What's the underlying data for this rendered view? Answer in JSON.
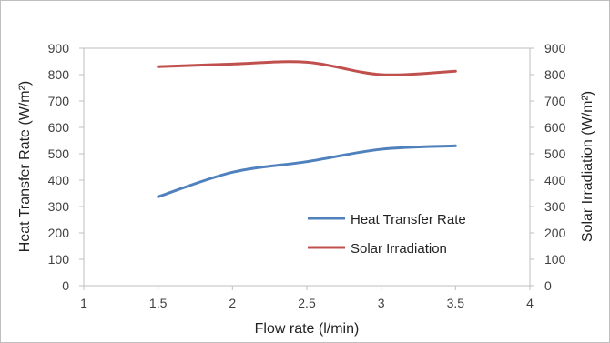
{
  "chart_data": {
    "type": "line",
    "xlabel": "Flow rate (l/min)",
    "ylabel_left": "Heat Transfer Rate (W/m²)",
    "ylabel_right": "Solar Irradiation (W/m²)",
    "xlim": [
      1,
      4
    ],
    "x_ticks": [
      1,
      1.5,
      2,
      2.5,
      3,
      3.5,
      4
    ],
    "x_tick_labels": [
      "1",
      "1.5",
      "2",
      "2.5",
      "3",
      "3.5",
      "4"
    ],
    "ylim_left": [
      0,
      900
    ],
    "ylim_right": [
      0,
      900
    ],
    "y_ticks": [
      0,
      100,
      200,
      300,
      400,
      500,
      600,
      700,
      800,
      900
    ],
    "y_tick_labels": [
      "0",
      "100",
      "200",
      "300",
      "400",
      "500",
      "600",
      "700",
      "800",
      "900"
    ],
    "grid": false,
    "legend_position": "lower-right",
    "series": [
      {
        "name": "Heat Transfer Rate",
        "axis": "left",
        "color": "#4f81bd",
        "x": [
          1.5,
          2,
          2.5,
          3,
          3.5
        ],
        "values": [
          337,
          430,
          470,
          517,
          530
        ]
      },
      {
        "name": "Solar Irradiation",
        "axis": "right",
        "color": "#c0504d",
        "x": [
          1.5,
          2,
          2.5,
          3,
          3.5
        ],
        "values": [
          830,
          840,
          847,
          800,
          813
        ]
      }
    ]
  }
}
